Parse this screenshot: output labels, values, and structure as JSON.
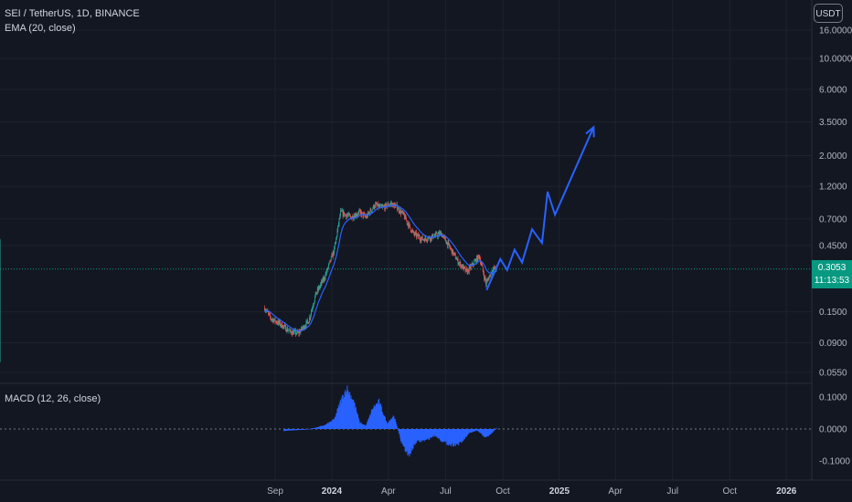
{
  "header": {
    "symbol": "SEI / TetherUS, 1D, BINANCE",
    "ema_label": "EMA (20, close)",
    "macd_label": "MACD (12, 26, close)",
    "currency": "USDT"
  },
  "price_tag": {
    "price": "0.3053",
    "countdown": "11:13:53",
    "color": "#089981"
  },
  "colors": {
    "background": "#131722",
    "up": "#26a69a",
    "down": "#ef5350",
    "ema": "#2962ff",
    "projection": "#2962ff",
    "macd_hist": "#2962ff"
  },
  "chart_data": {
    "type": "candlestick",
    "price_axis": {
      "scale": "log",
      "ticks": [
        "16.0000",
        "10.0000",
        "6.0000",
        "3.5000",
        "2.0000",
        "1.2000",
        "0.7000",
        "0.4500",
        "0.1500",
        "0.0900",
        "0.0550"
      ],
      "tick_values": [
        16,
        10,
        6,
        3.5,
        2,
        1.2,
        0.7,
        0.45,
        0.15,
        0.09,
        0.055
      ],
      "current": 0.3053
    },
    "macd_axis": {
      "ticks": [
        "0.1000",
        "0.0000",
        "-0.1000"
      ],
      "tick_values": [
        0.1,
        0,
        -0.1
      ]
    },
    "time_axis": {
      "labels": [
        "Sep",
        "2024",
        "Apr",
        "Jul",
        "Oct",
        "2025",
        "Apr",
        "Jul",
        "Oct",
        "2026"
      ],
      "bold": [
        "2024",
        "2025",
        "2026"
      ]
    },
    "price_path": [
      {
        "date": "2023-08-15",
        "price": 0.16
      },
      {
        "date": "2023-08-25",
        "price": 0.135
      },
      {
        "date": "2023-09-10",
        "price": 0.122
      },
      {
        "date": "2023-09-25",
        "price": 0.108
      },
      {
        "date": "2023-10-08",
        "price": 0.105
      },
      {
        "date": "2023-10-25",
        "price": 0.13
      },
      {
        "date": "2023-11-05",
        "price": 0.2
      },
      {
        "date": "2023-11-20",
        "price": 0.27
      },
      {
        "date": "2023-12-05",
        "price": 0.42
      },
      {
        "date": "2023-12-15",
        "price": 0.78
      },
      {
        "date": "2024-01-01",
        "price": 0.72
      },
      {
        "date": "2024-01-15",
        "price": 0.78
      },
      {
        "date": "2024-01-25",
        "price": 0.72
      },
      {
        "date": "2024-02-08",
        "price": 0.88
      },
      {
        "date": "2024-02-20",
        "price": 0.84
      },
      {
        "date": "2024-03-05",
        "price": 0.9
      },
      {
        "date": "2024-03-15",
        "price": 0.85
      },
      {
        "date": "2024-03-25",
        "price": 0.75
      },
      {
        "date": "2024-04-10",
        "price": 0.55
      },
      {
        "date": "2024-04-25",
        "price": 0.5
      },
      {
        "date": "2024-05-10",
        "price": 0.52
      },
      {
        "date": "2024-05-25",
        "price": 0.55
      },
      {
        "date": "2024-06-10",
        "price": 0.42
      },
      {
        "date": "2024-06-20",
        "price": 0.35
      },
      {
        "date": "2024-07-05",
        "price": 0.29
      },
      {
        "date": "2024-07-15",
        "price": 0.33
      },
      {
        "date": "2024-07-25",
        "price": 0.38
      },
      {
        "date": "2024-08-05",
        "price": 0.24
      },
      {
        "date": "2024-08-15",
        "price": 0.3
      },
      {
        "date": "2024-08-22",
        "price": 0.31
      }
    ],
    "projection": [
      {
        "date": "2024-08-06",
        "price": 0.215
      },
      {
        "date": "2024-08-28",
        "price": 0.36
      },
      {
        "date": "2024-09-08",
        "price": 0.3
      },
      {
        "date": "2024-09-20",
        "price": 0.42
      },
      {
        "date": "2024-10-02",
        "price": 0.34
      },
      {
        "date": "2024-10-18",
        "price": 0.59
      },
      {
        "date": "2024-11-03",
        "price": 0.47
      },
      {
        "date": "2024-11-12",
        "price": 1.1
      },
      {
        "date": "2024-11-24",
        "price": 0.75
      },
      {
        "date": "2025-01-25",
        "price": 3.2
      }
    ],
    "macd_hist": [
      {
        "date": "2023-09-15",
        "value": -0.006
      },
      {
        "date": "2023-10-01",
        "value": -0.004
      },
      {
        "date": "2023-10-20",
        "value": -0.002
      },
      {
        "date": "2023-11-05",
        "value": 0.004
      },
      {
        "date": "2023-11-20",
        "value": 0.012
      },
      {
        "date": "2023-12-05",
        "value": 0.03
      },
      {
        "date": "2023-12-15",
        "value": 0.085
      },
      {
        "date": "2023-12-25",
        "value": 0.128
      },
      {
        "date": "2024-01-05",
        "value": 0.09
      },
      {
        "date": "2024-01-15",
        "value": 0.02
      },
      {
        "date": "2024-01-25",
        "value": 0.01
      },
      {
        "date": "2024-02-05",
        "value": 0.065
      },
      {
        "date": "2024-02-15",
        "value": 0.085
      },
      {
        "date": "2024-02-28",
        "value": 0.018
      },
      {
        "date": "2024-03-10",
        "value": 0.042
      },
      {
        "date": "2024-03-22",
        "value": -0.04
      },
      {
        "date": "2024-04-02",
        "value": -0.085
      },
      {
        "date": "2024-04-15",
        "value": -0.04
      },
      {
        "date": "2024-05-01",
        "value": -0.035
      },
      {
        "date": "2024-05-15",
        "value": -0.02
      },
      {
        "date": "2024-05-28",
        "value": -0.04
      },
      {
        "date": "2024-06-10",
        "value": -0.05
      },
      {
        "date": "2024-06-25",
        "value": -0.045
      },
      {
        "date": "2024-07-10",
        "value": -0.012
      },
      {
        "date": "2024-07-22",
        "value": -0.005
      },
      {
        "date": "2024-08-05",
        "value": -0.028
      },
      {
        "date": "2024-08-15",
        "value": -0.012
      },
      {
        "date": "2024-08-22",
        "value": 0.003
      }
    ]
  }
}
